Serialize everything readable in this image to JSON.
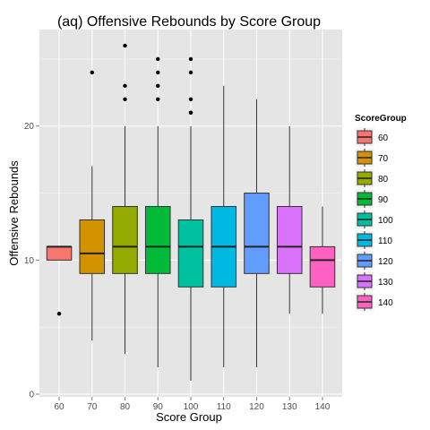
{
  "chart_data": {
    "type": "boxplot",
    "title": "(aq) Offensive Rebounds by Score Group",
    "xlabel": "Score Group",
    "ylabel": "Offensive Rebounds",
    "categories": [
      "60",
      "70",
      "80",
      "90",
      "100",
      "110",
      "120",
      "130",
      "140"
    ],
    "ylim": [
      -0.2,
      27.2
    ],
    "yticks": [
      0,
      10,
      20
    ],
    "grid": true,
    "legend": {
      "title": "ScoreGroup",
      "position": "right",
      "entries": [
        "60",
        "70",
        "80",
        "90",
        "100",
        "110",
        "120",
        "130",
        "140"
      ]
    },
    "boxes": [
      {
        "group": "60",
        "lower_whisker": 10,
        "q1": 10,
        "median": 11,
        "q3": 11,
        "upper_whisker": 11,
        "outliers": [
          6
        ],
        "color": "#F8766D"
      },
      {
        "group": "70",
        "lower_whisker": 4,
        "q1": 9,
        "median": 10.5,
        "q3": 13,
        "upper_whisker": 17,
        "outliers": [
          24
        ],
        "color": "#D39200"
      },
      {
        "group": "80",
        "lower_whisker": 3,
        "q1": 9,
        "median": 11,
        "q3": 14,
        "upper_whisker": 20,
        "outliers": [
          22,
          23,
          26
        ],
        "color": "#93AA00"
      },
      {
        "group": "90",
        "lower_whisker": 2,
        "q1": 9,
        "median": 11,
        "q3": 14,
        "upper_whisker": 20,
        "outliers": [
          22,
          23,
          24,
          25
        ],
        "color": "#00BA38"
      },
      {
        "group": "100",
        "lower_whisker": 1,
        "q1": 8,
        "median": 11,
        "q3": 13,
        "upper_whisker": 20,
        "outliers": [
          21,
          21,
          22,
          24,
          25
        ],
        "color": "#00C19F"
      },
      {
        "group": "110",
        "lower_whisker": 2,
        "q1": 8,
        "median": 11,
        "q3": 14,
        "upper_whisker": 23,
        "outliers": [],
        "color": "#00B9E3"
      },
      {
        "group": "120",
        "lower_whisker": 2,
        "q1": 9,
        "median": 11,
        "q3": 15,
        "upper_whisker": 22,
        "outliers": [],
        "color": "#619CFF"
      },
      {
        "group": "130",
        "lower_whisker": 6,
        "q1": 9,
        "median": 11,
        "q3": 14,
        "upper_whisker": 20,
        "outliers": [],
        "color": "#DB72FB"
      },
      {
        "group": "140",
        "lower_whisker": 6,
        "q1": 8,
        "median": 10,
        "q3": 11,
        "upper_whisker": 14,
        "outliers": [],
        "color": "#FF61C3"
      }
    ]
  }
}
